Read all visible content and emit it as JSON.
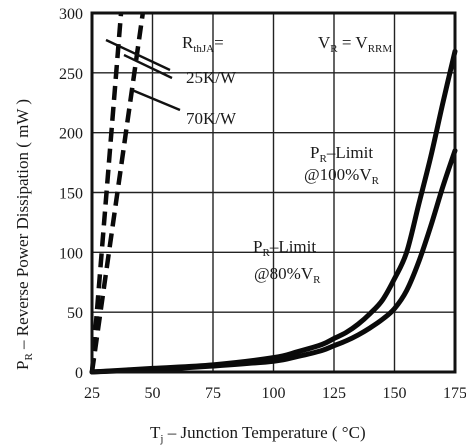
{
  "chart_data": {
    "type": "line",
    "xlabel_main": "T",
    "xlabel_sub": "j",
    "xlabel_rest": " – Junction Temperature ( °C)",
    "ylabel_main": "P",
    "ylabel_sub": "R",
    "ylabel_rest": " – Reverse Power Dissipation ( mW )",
    "xlim": [
      25,
      175
    ],
    "ylim": [
      0,
      300
    ],
    "x_ticks": [
      25,
      50,
      75,
      100,
      125,
      150,
      175
    ],
    "y_ticks": [
      0,
      50,
      100,
      150,
      200,
      250,
      300
    ],
    "grid": true,
    "series": [
      {
        "name": "PR–Limit @100%VR",
        "style": "solid",
        "x": [
          25,
          50,
          75,
          100,
          110,
          120,
          125,
          130,
          135,
          140,
          145,
          150,
          155,
          160,
          165,
          170,
          175
        ],
        "y": [
          0,
          3,
          6,
          12,
          17,
          23,
          28,
          33,
          40,
          49,
          60,
          78,
          100,
          140,
          180,
          225,
          268
        ]
      },
      {
        "name": "PR–Limit @80%VR",
        "style": "solid",
        "x": [
          25,
          50,
          75,
          100,
          110,
          120,
          125,
          130,
          135,
          140,
          145,
          150,
          155,
          160,
          165,
          170,
          175
        ],
        "y": [
          0,
          2,
          5,
          9,
          13,
          18,
          22,
          26,
          31,
          37,
          44,
          53,
          68,
          92,
          122,
          155,
          185
        ]
      },
      {
        "name": "RthJA = 25K/W",
        "style": "dashed",
        "x": [
          25,
          37
        ],
        "y": [
          0,
          300
        ]
      },
      {
        "name": "RthJA = 70K/W",
        "style": "dashed",
        "x": [
          25,
          46
        ],
        "y": [
          0,
          300
        ]
      }
    ],
    "annotations": {
      "rth_main": "R",
      "rth_sub": "thJA",
      "rth_suffix": "=",
      "rth_25": "25K/W",
      "rth_70": "70K/W",
      "vr_main": "V",
      "vr_sub1": "R",
      "vr_mid": " = V",
      "vr_sub2": "RRM",
      "pr100_main": "P",
      "pr100_sub": "R",
      "pr100_rest": "–Limit",
      "pr100_line2": "@100%V",
      "pr100_line2_sub": "R",
      "pr80_main": "P",
      "pr80_sub": "R",
      "pr80_rest": "–Limit",
      "pr80_line2": "@80%V",
      "pr80_line2_sub": "R"
    }
  }
}
